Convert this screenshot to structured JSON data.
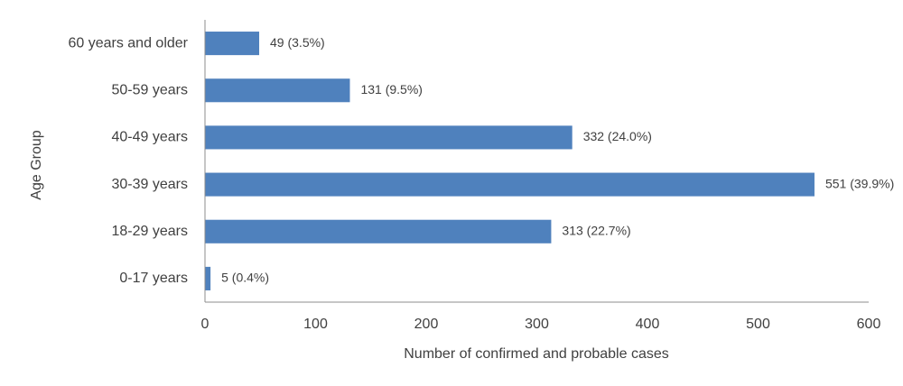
{
  "chart_data": {
    "type": "bar",
    "orientation": "horizontal",
    "categories": [
      "60 years and older",
      "50-59 years",
      "40-49 years",
      "30-39 years",
      "18-29 years",
      "0-17 years"
    ],
    "values": [
      49,
      131,
      332,
      551,
      313,
      5
    ],
    "data_labels": [
      "49 (3.5%)",
      "131 (9.5%)",
      "332 (24.0%)",
      "551 (39.9%)",
      "313 (22.7%)",
      "5 (0.4%)"
    ],
    "xlabel": "Number of confirmed and probable cases",
    "ylabel": "Age Group",
    "xlim": [
      0,
      600
    ],
    "xticks": [
      0,
      100,
      200,
      300,
      400,
      500,
      600
    ],
    "grid": false,
    "bar_color": "#4f81bd"
  }
}
